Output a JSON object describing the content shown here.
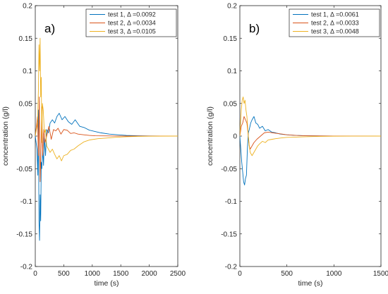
{
  "chart_data": [
    {
      "type": "line",
      "panel_label": "a)",
      "xlabel": "time (s)",
      "ylabel": "concentration (g/l)",
      "xlim": [
        0,
        2500
      ],
      "ylim": [
        -0.2,
        0.2
      ],
      "xticks": [
        0,
        500,
        1000,
        1500,
        2000,
        2500
      ],
      "yticks": [
        -0.2,
        -0.15,
        -0.1,
        -0.05,
        0,
        0.05,
        0.1,
        0.15,
        0.2
      ],
      "xtick_labels": [
        "0",
        "500",
        "1000",
        "1500",
        "2000",
        "2500"
      ],
      "ytick_labels": [
        "-0.2",
        "-0.15",
        "-0.1",
        "-0.05",
        "0",
        "0.05",
        "0.1",
        "0.15",
        "0.2"
      ],
      "grid": false,
      "legend_position": "top-right",
      "series": [
        {
          "name": "test 1, Δ =0.0092",
          "color": "#0072BD",
          "x": [
            0,
            30,
            45,
            55,
            65,
            75,
            85,
            95,
            105,
            115,
            130,
            145,
            160,
            180,
            200,
            230,
            260,
            300,
            340,
            380,
            420,
            470,
            520,
            580,
            640,
            700,
            780,
            860,
            950,
            1050,
            1150,
            1300,
            1450,
            1600,
            1800,
            2000,
            2200,
            2500
          ],
          "y": [
            0,
            -0.02,
            -0.06,
            0.04,
            -0.13,
            -0.16,
            -0.09,
            -0.13,
            -0.04,
            -0.05,
            -0.02,
            -0.045,
            0.0,
            -0.03,
            0.01,
            0.005,
            0.02,
            0.025,
            0.02,
            0.03,
            0.035,
            0.025,
            0.03,
            0.022,
            0.018,
            0.025,
            0.015,
            0.013,
            0.009,
            0.007,
            0.005,
            0.003,
            0.002,
            0.001,
            0.0005,
            0.0002,
            0.0001,
            0
          ]
        },
        {
          "name": "test 2, Δ =0.0034",
          "color": "#D95319",
          "x": [
            0,
            40,
            55,
            70,
            85,
            100,
            115,
            130,
            150,
            170,
            200,
            240,
            280,
            320,
            360,
            400,
            450,
            500,
            560,
            620,
            680,
            750,
            850,
            950,
            1050,
            1200,
            1400,
            1700,
            2000,
            2500
          ],
          "y": [
            0,
            0.03,
            -0.03,
            0.06,
            -0.07,
            -0.02,
            0.045,
            -0.03,
            0.01,
            -0.01,
            0.0,
            0.015,
            -0.005,
            0.01,
            0.008,
            0.012,
            0.003,
            0.01,
            0.009,
            0.004,
            0.005,
            0.003,
            0.002,
            0.001,
            0.0005,
            0.0003,
            0.0001,
            0,
            0,
            0
          ]
        },
        {
          "name": "test 3, Δ =0.0105",
          "color": "#EDB120",
          "x": [
            0,
            40,
            55,
            65,
            75,
            85,
            95,
            105,
            115,
            125,
            140,
            160,
            180,
            200,
            230,
            260,
            300,
            340,
            380,
            420,
            460,
            500,
            560,
            620,
            680,
            750,
            850,
            950,
            1100,
            1250,
            1400,
            1600,
            1800,
            2000,
            2500
          ],
          "y": [
            0,
            0.02,
            0.07,
            0.14,
            0.1,
            0.15,
            0.06,
            0.09,
            -0.01,
            0.05,
            0.04,
            0.005,
            0.01,
            -0.015,
            -0.02,
            -0.025,
            -0.02,
            -0.028,
            -0.035,
            -0.03,
            -0.038,
            -0.03,
            -0.028,
            -0.022,
            -0.02,
            -0.015,
            -0.009,
            -0.006,
            -0.004,
            -0.003,
            -0.002,
            -0.001,
            -0.0005,
            -0.0002,
            0
          ]
        }
      ]
    },
    {
      "type": "line",
      "panel_label": "b)",
      "xlabel": "time (s)",
      "ylabel": "concentration (g/l)",
      "xlim": [
        0,
        1500
      ],
      "ylim": [
        -0.2,
        0.2
      ],
      "xticks": [
        0,
        500,
        1000,
        1500
      ],
      "yticks": [
        -0.2,
        -0.15,
        -0.1,
        -0.05,
        0,
        0.05,
        0.1,
        0.15,
        0.2
      ],
      "xtick_labels": [
        "0",
        "500",
        "1000",
        "1500"
      ],
      "ytick_labels": [
        "-0.2",
        "-0.15",
        "-0.1",
        "-0.05",
        "0",
        "0.05",
        "0.1",
        "0.15",
        "0.2"
      ],
      "grid": false,
      "legend_position": "top-right",
      "series": [
        {
          "name": "test 1, Δ =0.0061",
          "color": "#0072BD",
          "x": [
            0,
            10,
            20,
            30,
            40,
            50,
            60,
            70,
            80,
            90,
            100,
            115,
            130,
            150,
            170,
            190,
            210,
            240,
            270,
            300,
            340,
            380,
            430,
            500,
            600,
            700,
            850,
            1000,
            1200,
            1500
          ],
          "y": [
            0,
            -0.02,
            -0.04,
            -0.055,
            -0.07,
            -0.075,
            -0.065,
            -0.06,
            -0.02,
            0.005,
            0.01,
            0.02,
            0.025,
            0.03,
            0.02,
            0.018,
            0.012,
            0.015,
            0.008,
            0.01,
            0.006,
            0.005,
            0.003,
            0.002,
            0.001,
            0.0005,
            0.0002,
            0.0001,
            0,
            0
          ]
        },
        {
          "name": "test 2, Δ =0.0033",
          "color": "#D95319",
          "x": [
            0,
            15,
            30,
            45,
            60,
            75,
            90,
            100,
            110,
            130,
            150,
            180,
            220,
            260,
            300,
            350,
            400,
            450,
            500,
            600,
            700,
            850,
            1000,
            1200,
            1500
          ],
          "y": [
            0,
            0.015,
            0.02,
            0.03,
            0.025,
            0.02,
            0.0,
            -0.015,
            -0.02,
            -0.015,
            -0.01,
            -0.005,
            0.0,
            0.005,
            0.006,
            0.005,
            0.004,
            0.003,
            0.002,
            0.001,
            0.0005,
            0.0002,
            0.0001,
            0,
            0
          ]
        },
        {
          "name": "test 3, Δ =0.0048",
          "color": "#EDB120",
          "x": [
            0,
            15,
            25,
            35,
            45,
            55,
            65,
            75,
            85,
            95,
            110,
            130,
            150,
            170,
            190,
            210,
            240,
            270,
            300,
            340,
            380,
            430,
            500,
            600,
            700,
            850,
            1000,
            1200,
            1500
          ],
          "y": [
            0,
            0.04,
            0.055,
            0.06,
            0.05,
            0.055,
            0.04,
            0.03,
            0.01,
            -0.01,
            -0.025,
            -0.03,
            -0.025,
            -0.02,
            -0.015,
            -0.012,
            -0.008,
            -0.01,
            -0.006,
            -0.005,
            -0.004,
            -0.003,
            -0.002,
            -0.0015,
            -0.001,
            -0.0005,
            -0.0002,
            -0.0001,
            0
          ]
        }
      ]
    }
  ]
}
